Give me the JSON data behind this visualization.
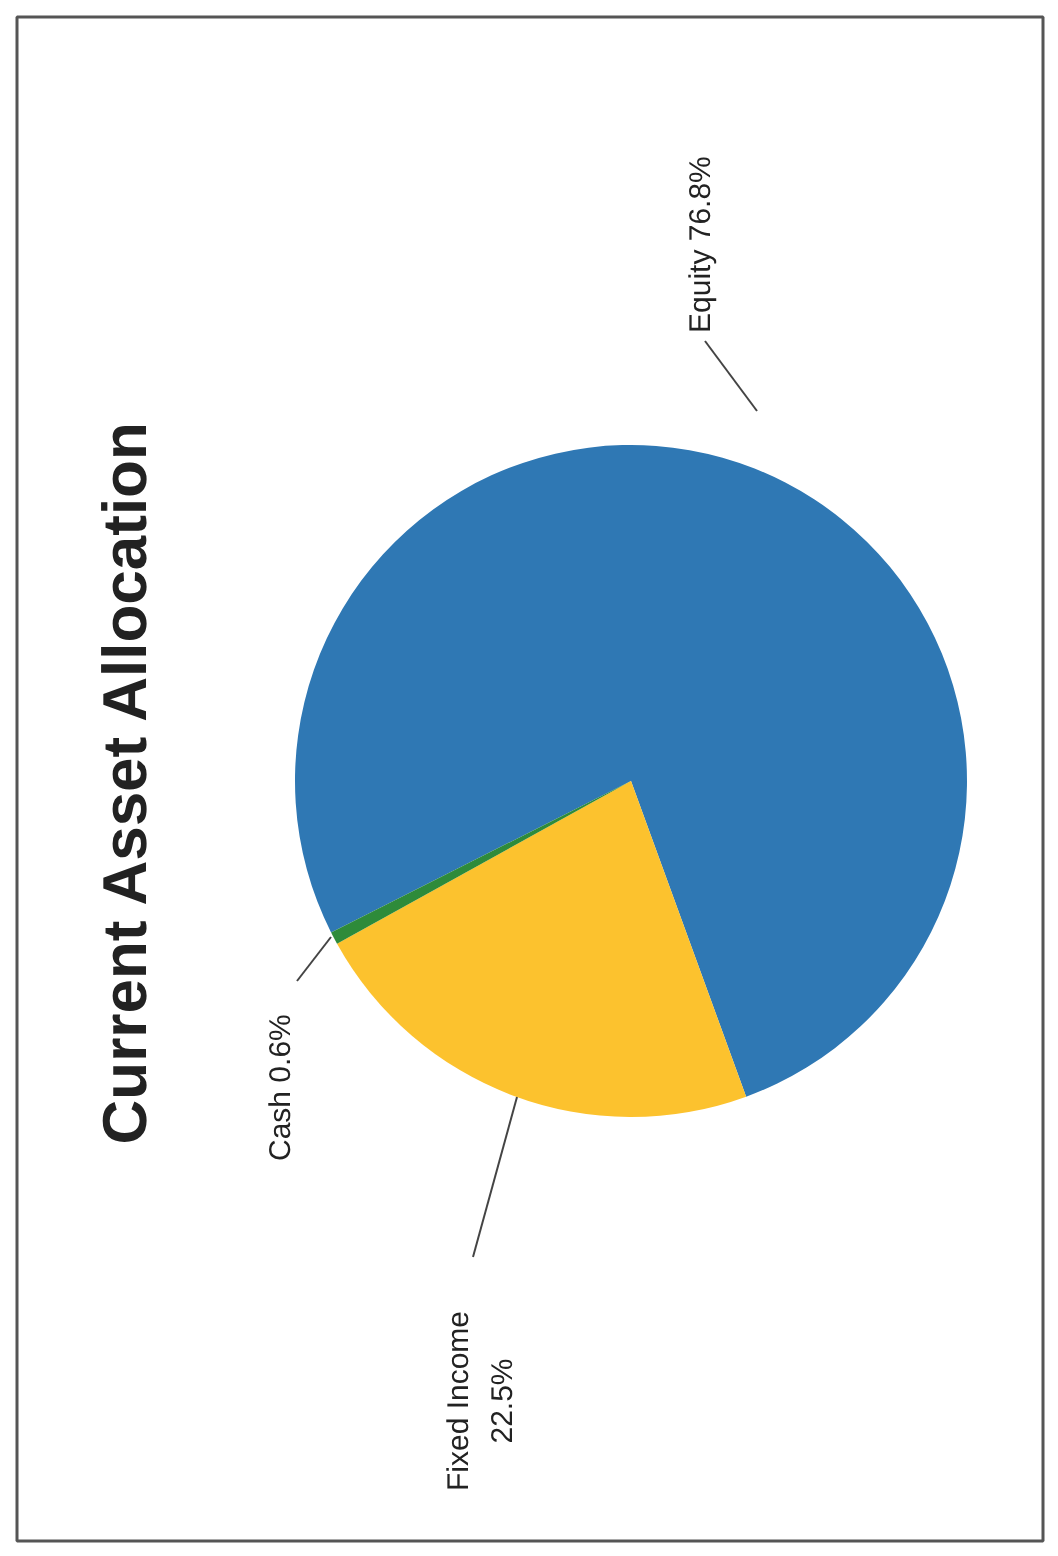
{
  "chart_data": {
    "type": "pie",
    "title": "Current Asset Allocation",
    "categories": [
      "Equity",
      "Fixed Income",
      "Cash"
    ],
    "values": [
      76.8,
      22.5,
      0.6
    ],
    "colors": [
      "#2f78b4",
      "#fcc22e",
      "#2e8b3a"
    ],
    "value_labels": [
      "76.8%",
      "22.5%",
      "0.6%"
    ]
  }
}
